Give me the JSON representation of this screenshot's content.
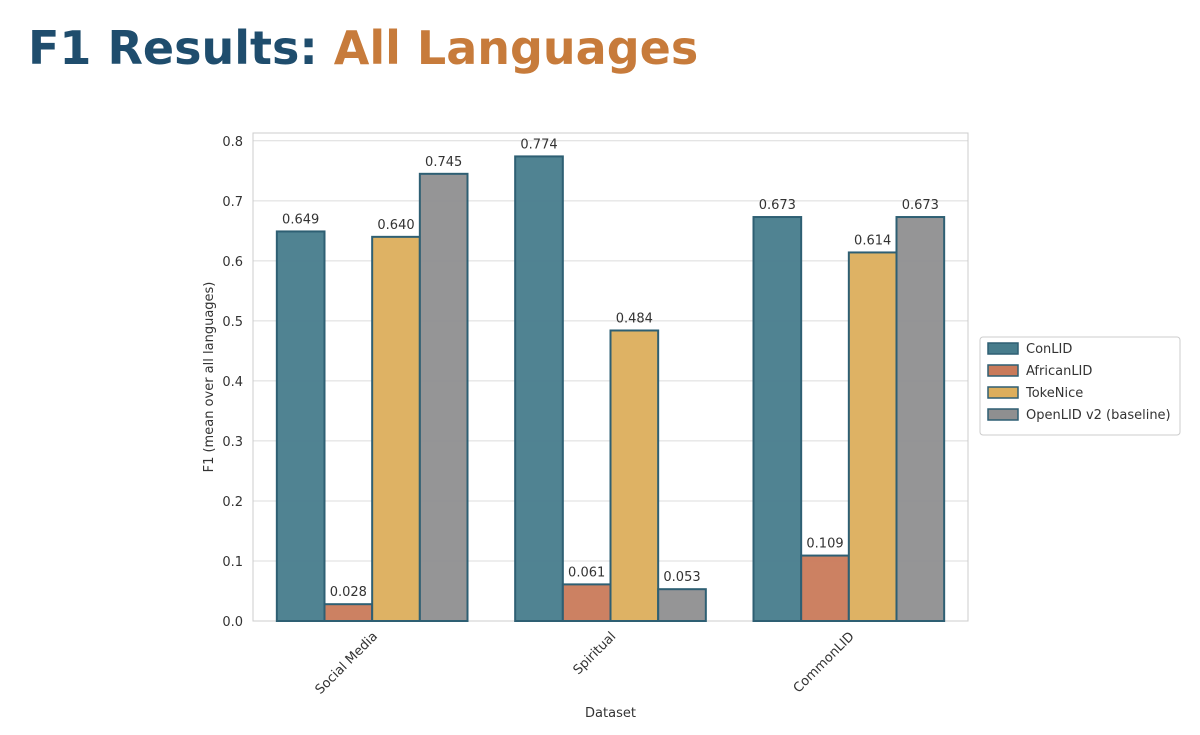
{
  "slide": {
    "title": "F1 Results:",
    "title_highlight": "All Languages"
  },
  "chart_data": {
    "type": "bar",
    "xlabel": "Dataset",
    "ylabel": "F1 (mean over all languages)",
    "categories": [
      "Social Media",
      "Spiritual",
      "CommonLID"
    ],
    "series": [
      {
        "name": "ConLID",
        "color": "#477c8c",
        "values": [
          0.649,
          0.774,
          0.673
        ],
        "value_labels": [
          "0.649",
          "0.774",
          "0.673"
        ]
      },
      {
        "name": "AfricanLID",
        "color": "#c97a5a",
        "values": [
          0.028,
          0.061,
          0.109
        ],
        "value_labels": [
          "0.028",
          "0.061",
          "0.109"
        ]
      },
      {
        "name": "TokeNice",
        "color": "#dcae5c",
        "values": [
          0.64,
          0.484,
          0.614
        ],
        "value_labels": [
          "0.640",
          "0.484",
          "0.614"
        ]
      },
      {
        "name": "OpenLID v2 (baseline)",
        "color": "#8f8f90",
        "values": [
          0.745,
          0.053,
          0.673
        ],
        "value_labels": [
          "0.745",
          "0.053",
          "0.673"
        ]
      }
    ],
    "ylim": [
      0,
      0.813
    ],
    "yticks": [
      {
        "value": 0,
        "label": "0.0"
      },
      0.1,
      0.2,
      0.3,
      0.4,
      0.5,
      0.6,
      0.7,
      0.8
    ],
    "grid": true,
    "legend_loc": "center right",
    "edge_color": "#2e5f73"
  }
}
